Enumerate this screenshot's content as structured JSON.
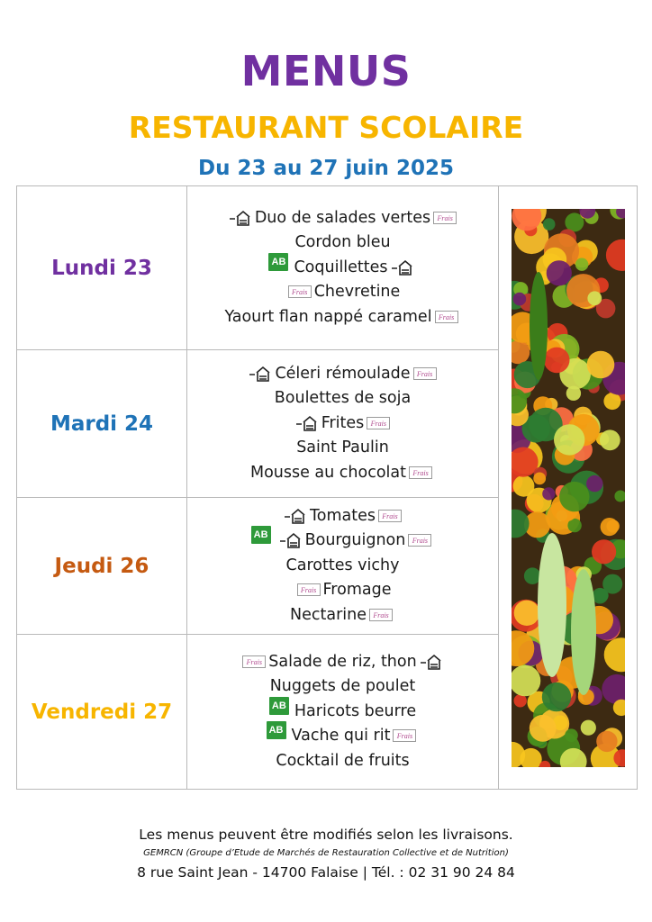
{
  "header": {
    "title": "MENUS",
    "subtitle": "RESTAURANT SCOLAIRE",
    "dates": "Du 23 au 27 juin 2025"
  },
  "days": [
    {
      "label": "Lundi 23",
      "color": "#7030a0",
      "dishes": [
        {
          "text": "Duo de salades vertes",
          "before": [
            "house-icon"
          ],
          "after": [
            "frais-icon"
          ]
        },
        {
          "text": "Cordon bleu",
          "before": [],
          "after": []
        },
        {
          "text": "Coquillettes",
          "before": [
            "ab-bio-icon"
          ],
          "after": [
            "house-icon"
          ]
        },
        {
          "text": "Chevretine",
          "before": [
            "frais-icon"
          ],
          "after": []
        },
        {
          "text": "Yaourt flan nappé caramel",
          "before": [],
          "after": [
            "frais-icon"
          ]
        }
      ]
    },
    {
      "label": "Mardi 24",
      "color": "#1f73b7",
      "dishes": [
        {
          "text": "Céleri rémoulade",
          "before": [
            "house-icon"
          ],
          "after": [
            "frais-icon"
          ]
        },
        {
          "text": "Boulettes de soja",
          "before": [],
          "after": []
        },
        {
          "text": "Frites",
          "before": [
            "house-icon"
          ],
          "after": [
            "frais-icon"
          ]
        },
        {
          "text": "Saint Paulin",
          "before": [],
          "after": []
        },
        {
          "text": "Mousse au chocolat",
          "before": [],
          "after": [
            "frais-icon"
          ]
        }
      ]
    },
    {
      "label": "Jeudi 26",
      "color": "#c55a11",
      "dishes": [
        {
          "text": "Tomates",
          "before": [
            "house-icon"
          ],
          "after": [
            "frais-icon"
          ]
        },
        {
          "text": "Bourguignon",
          "before": [
            "ab-bio-icon",
            "house-icon"
          ],
          "after": [
            "frais-icon"
          ]
        },
        {
          "text": "Carottes vichy",
          "before": [],
          "after": []
        },
        {
          "text": "Fromage",
          "before": [
            "frais-icon"
          ],
          "after": []
        },
        {
          "text": "Nectarine",
          "before": [],
          "after": [
            "frais-icon"
          ]
        }
      ]
    },
    {
      "label": "Vendredi 27",
      "color": "#f7b500",
      "dishes": [
        {
          "text": "Salade de riz, thon",
          "before": [
            "frais-icon"
          ],
          "after": [
            "house-icon"
          ]
        },
        {
          "text": "Nuggets de poulet",
          "before": [],
          "after": []
        },
        {
          "text": "Haricots beurre",
          "before": [
            "ab-bio-icon"
          ],
          "after": []
        },
        {
          "text": "Vache qui rit",
          "before": [
            "ab-bio-icon"
          ],
          "after": [
            "frais-icon"
          ]
        },
        {
          "text": "Cocktail de fruits",
          "before": [],
          "after": []
        }
      ]
    }
  ],
  "labels": {
    "frais": "Frais",
    "ab": "AB"
  },
  "footer": {
    "note": "Les menus peuvent être modifiés selon les livraisons.",
    "gemrcn": "GEMRCN (Groupe d’Etude de Marchés de Restauration Collective et de Nutrition)",
    "address": "8 rue Saint Jean - 14700 Falaise | Tél. : 02 31 90 24 84"
  }
}
